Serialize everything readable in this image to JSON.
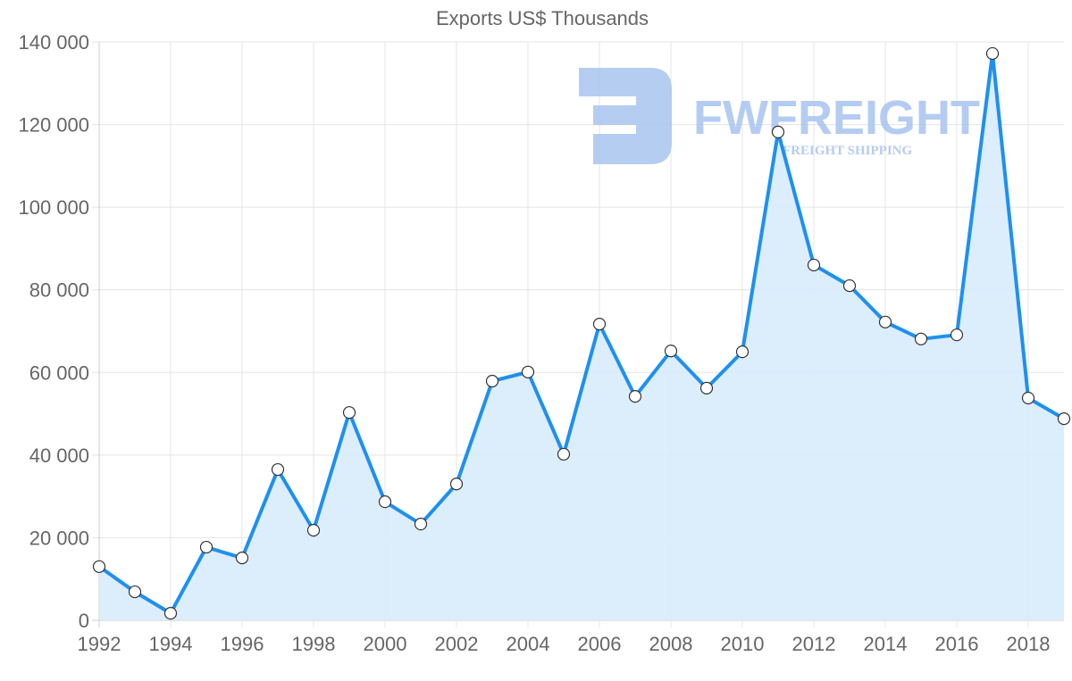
{
  "chart_data": {
    "type": "area",
    "title": "Exports US$ Thousands",
    "xlabel": "",
    "ylabel": "",
    "x": [
      1992,
      1993,
      1994,
      1995,
      1996,
      1997,
      1998,
      1999,
      2000,
      2001,
      2002,
      2003,
      2004,
      2005,
      2006,
      2007,
      2008,
      2009,
      2010,
      2011,
      2012,
      2013,
      2014,
      2015,
      2016,
      2017,
      2018,
      2019
    ],
    "series": [
      {
        "name": "Exports US$ Thousands",
        "values": [
          13000,
          6900,
          1700,
          17700,
          15100,
          36500,
          21800,
          50300,
          28700,
          23300,
          33000,
          57900,
          60100,
          40200,
          71700,
          54200,
          65200,
          56200,
          65000,
          118200,
          86000,
          81000,
          72200,
          68100,
          69100,
          137200,
          53800,
          48800
        ],
        "line_color": "#1e90f0",
        "fill_color": "#d8ebfc"
      }
    ],
    "x_tick_labels": [
      "1992",
      "1994",
      "1996",
      "1998",
      "2000",
      "2002",
      "2004",
      "2006",
      "2008",
      "2010",
      "2012",
      "2014",
      "2016",
      "2018"
    ],
    "y_tick_labels": [
      "0",
      "20 000",
      "40 000",
      "60 000",
      "80 000",
      "100 000",
      "120 000",
      "140 000"
    ],
    "y_ticks": [
      0,
      20000,
      40000,
      60000,
      80000,
      100000,
      120000,
      140000
    ],
    "ylim": [
      0,
      140000
    ],
    "xlim": [
      1992,
      2019
    ],
    "grid": true,
    "legend": "none",
    "watermark": {
      "brand": "FWFREIGHT",
      "tagline": "FREIGHT SHIPPING",
      "color": "#a9c4f0"
    }
  }
}
